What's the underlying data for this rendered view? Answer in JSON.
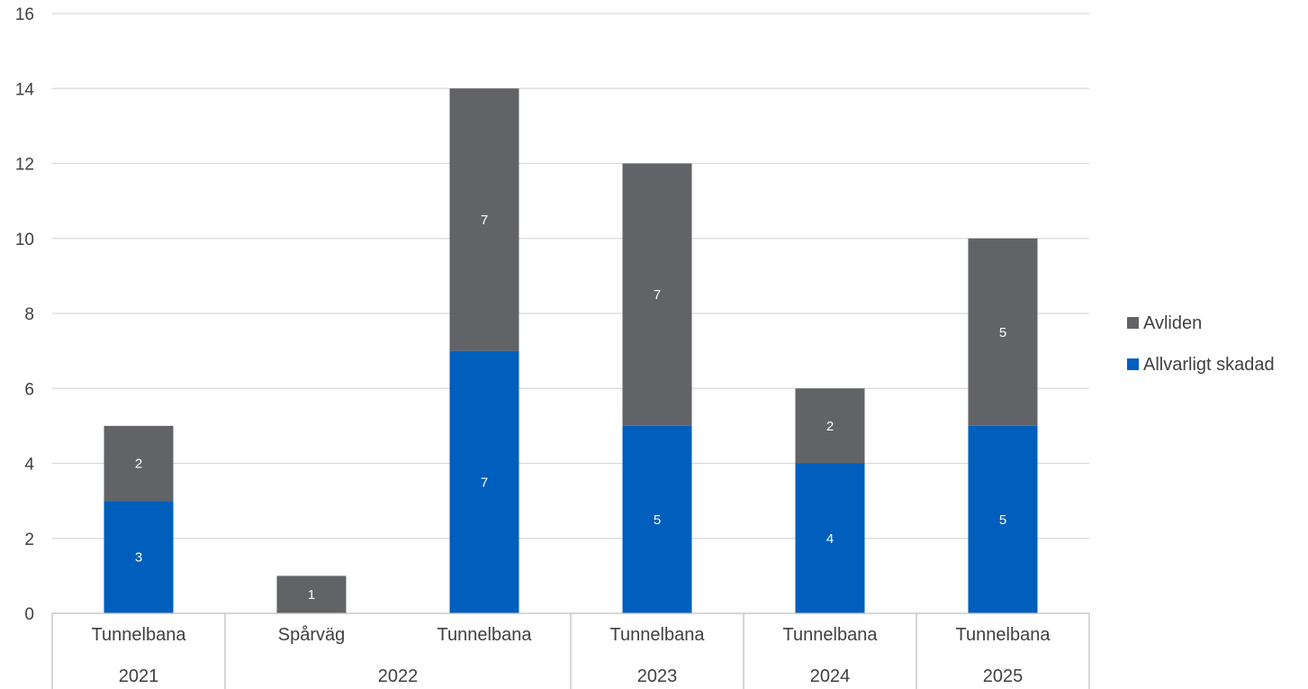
{
  "chart_data": {
    "type": "bar",
    "stacked": true,
    "title": "",
    "xlabel": "",
    "ylabel": "",
    "ylim": [
      0,
      16
    ],
    "yticks": [
      0,
      2,
      4,
      6,
      8,
      10,
      12,
      14,
      16
    ],
    "grid": true,
    "legend_position": "right",
    "categories": [
      {
        "label": "Tunnelbana",
        "group": "2021"
      },
      {
        "label": "Spårväg",
        "group": "2022"
      },
      {
        "label": "Tunnelbana",
        "group": "2022"
      },
      {
        "label": "Tunnelbana",
        "group": "2023"
      },
      {
        "label": "Tunnelbana",
        "group": "2024"
      },
      {
        "label": "Tunnelbana",
        "group": "2025"
      }
    ],
    "groups": [
      "2021",
      "2022",
      "2023",
      "2024",
      "2025"
    ],
    "series": [
      {
        "name": "Allvarligt skadad",
        "color": "#005EBD",
        "values": [
          3,
          0,
          7,
          5,
          4,
          5
        ]
      },
      {
        "name": "Avliden",
        "color": "#626366",
        "values": [
          2,
          1,
          7,
          7,
          2,
          5
        ]
      }
    ],
    "legend_order": [
      "Avliden",
      "Allvarligt skadad"
    ],
    "gridline_color": "#D9D9D9",
    "axis_color": "#BFBFBF"
  }
}
